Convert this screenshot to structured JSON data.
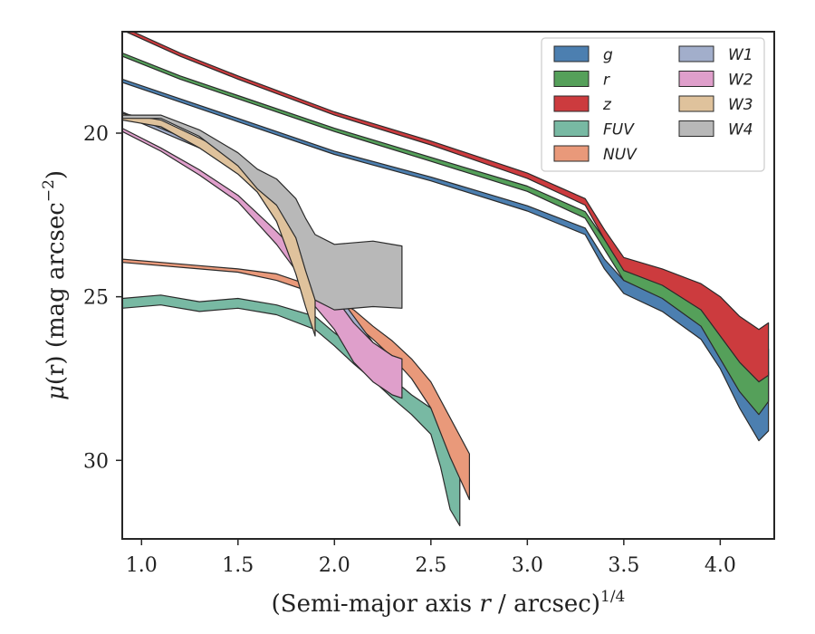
{
  "chart_data": {
    "type": "area",
    "title": "",
    "xlabel": {
      "prefix": "(Semi-major axis ",
      "var": "r",
      "suffix": " / arcsec)",
      "exponent": "1/4"
    },
    "ylabel": {
      "mu": "μ",
      "arg": "(r)",
      "rest": " (mag arcsec",
      "exponent": "−2",
      "close": ")"
    },
    "xlim": [
      0.9,
      4.28
    ],
    "ylim": [
      32.4,
      16.9
    ],
    "y_inverted": true,
    "grid": false,
    "legend_position": "top-right",
    "legend_columns": 2,
    "xticks": [
      {
        "value": 1.0,
        "label": "1.0"
      },
      {
        "value": 1.5,
        "label": "1.5"
      },
      {
        "value": 2.0,
        "label": "2.0"
      },
      {
        "value": 2.5,
        "label": "2.5"
      },
      {
        "value": 3.0,
        "label": "3.0"
      },
      {
        "value": 3.5,
        "label": "3.5"
      },
      {
        "value": 4.0,
        "label": "4.0"
      }
    ],
    "yticks": [
      {
        "value": 20,
        "label": "20"
      },
      {
        "value": 25,
        "label": "25"
      },
      {
        "value": 30,
        "label": "30"
      }
    ],
    "series": [
      {
        "name": "g",
        "color": "#4c7fb0",
        "x": [
          0.9,
          1.2,
          1.5,
          2.0,
          2.5,
          3.0,
          3.3,
          3.4,
          3.5,
          3.7,
          3.9,
          4.0,
          4.1,
          4.2,
          4.25
        ],
        "y": [
          18.4,
          19.0,
          19.6,
          20.6,
          21.4,
          22.3,
          23.0,
          24.0,
          24.7,
          25.2,
          25.9,
          26.6,
          27.6,
          28.5,
          28.2
        ],
        "half_width": [
          0.05,
          0.05,
          0.05,
          0.05,
          0.06,
          0.08,
          0.1,
          0.15,
          0.2,
          0.25,
          0.4,
          0.6,
          0.8,
          0.9,
          0.9
        ]
      },
      {
        "name": "r",
        "color": "#55a05a",
        "x": [
          0.9,
          1.2,
          1.5,
          2.0,
          2.5,
          3.0,
          3.3,
          3.4,
          3.5,
          3.7,
          3.9,
          4.0,
          4.1,
          4.2,
          4.25
        ],
        "y": [
          17.6,
          18.3,
          18.9,
          19.9,
          20.8,
          21.7,
          22.5,
          23.4,
          24.3,
          24.8,
          25.5,
          26.3,
          27.2,
          27.8,
          27.4
        ],
        "half_width": [
          0.05,
          0.05,
          0.05,
          0.05,
          0.06,
          0.08,
          0.1,
          0.15,
          0.2,
          0.25,
          0.4,
          0.6,
          0.7,
          0.8,
          0.8
        ]
      },
      {
        "name": "z",
        "color": "#cc3b3e",
        "x": [
          0.9,
          1.2,
          1.5,
          2.0,
          2.5,
          3.0,
          3.3,
          3.4,
          3.5,
          3.7,
          3.9,
          4.0,
          4.1,
          4.2,
          4.25
        ],
        "y": [
          16.8,
          17.6,
          18.3,
          19.4,
          20.3,
          21.3,
          22.1,
          23.1,
          24.0,
          24.4,
          25.0,
          25.6,
          26.3,
          26.8,
          26.6
        ],
        "half_width": [
          0.05,
          0.05,
          0.05,
          0.05,
          0.06,
          0.08,
          0.1,
          0.15,
          0.2,
          0.25,
          0.4,
          0.6,
          0.7,
          0.8,
          0.8
        ]
      },
      {
        "name": "FUV",
        "color": "#78b9a3",
        "x": [
          0.9,
          1.1,
          1.3,
          1.5,
          1.7,
          1.9,
          2.0,
          2.1,
          2.2,
          2.3,
          2.4,
          2.5,
          2.55,
          2.6,
          2.65
        ],
        "y": [
          25.2,
          25.1,
          25.3,
          25.2,
          25.4,
          25.8,
          26.3,
          26.8,
          27.3,
          27.8,
          28.3,
          28.8,
          29.6,
          30.7,
          31.2
        ],
        "half_width": [
          0.15,
          0.15,
          0.15,
          0.15,
          0.15,
          0.2,
          0.2,
          0.25,
          0.25,
          0.3,
          0.3,
          0.4,
          0.6,
          0.8,
          0.8
        ]
      },
      {
        "name": "NUV",
        "color": "#e9997a",
        "x": [
          0.9,
          1.1,
          1.3,
          1.5,
          1.7,
          1.9,
          2.0,
          2.1,
          2.2,
          2.3,
          2.4,
          2.5,
          2.6,
          2.7
        ],
        "y": [
          23.9,
          24.0,
          24.1,
          24.2,
          24.4,
          24.8,
          25.2,
          25.6,
          26.1,
          26.6,
          27.2,
          28.0,
          29.3,
          30.5
        ],
        "half_width": [
          0.05,
          0.05,
          0.05,
          0.05,
          0.1,
          0.1,
          0.15,
          0.2,
          0.2,
          0.25,
          0.3,
          0.4,
          0.6,
          0.7
        ]
      },
      {
        "name": "W1",
        "color": "#a2aecb",
        "x": [
          0.9,
          1.1,
          1.3,
          1.5,
          1.7,
          1.8,
          1.9,
          2.0,
          2.1,
          2.2,
          2.3,
          2.35
        ],
        "y": [
          19.4,
          19.9,
          20.4,
          21.1,
          22.0,
          22.7,
          24.0,
          25.3,
          26.1,
          26.9,
          27.3,
          27.4
        ],
        "half_width": [
          0.05,
          0.05,
          0.05,
          0.08,
          0.15,
          0.25,
          0.5,
          0.5,
          0.5,
          0.5,
          0.5,
          0.5
        ]
      },
      {
        "name": "W2",
        "color": "#df9fcb",
        "x": [
          0.9,
          1.1,
          1.3,
          1.5,
          1.7,
          1.8,
          1.9,
          2.0,
          2.1,
          2.2,
          2.3,
          2.35
        ],
        "y": [
          19.9,
          20.5,
          21.2,
          22.0,
          23.2,
          23.9,
          24.8,
          25.5,
          26.4,
          27.0,
          27.4,
          27.5
        ],
        "half_width": [
          0.05,
          0.05,
          0.08,
          0.1,
          0.2,
          0.3,
          0.5,
          0.5,
          0.6,
          0.6,
          0.6,
          0.6
        ]
      },
      {
        "name": "W3",
        "color": "#dfc29c",
        "x": [
          0.9,
          1.1,
          1.3,
          1.5,
          1.6,
          1.7,
          1.75,
          1.8,
          1.85,
          1.9
        ],
        "y": [
          19.5,
          19.7,
          20.3,
          21.0,
          21.5,
          22.3,
          23.0,
          23.7,
          24.5,
          25.2
        ],
        "half_width": [
          0.1,
          0.1,
          0.15,
          0.25,
          0.3,
          0.4,
          0.5,
          0.6,
          0.8,
          1.0
        ]
      },
      {
        "name": "W4",
        "color": "#b8b8b8",
        "x": [
          0.9,
          1.1,
          1.3,
          1.5,
          1.6,
          1.7,
          1.8,
          1.85,
          1.9,
          2.0,
          2.2,
          2.35
        ],
        "y": [
          19.5,
          19.5,
          20.0,
          20.8,
          21.4,
          21.8,
          22.6,
          23.4,
          24.1,
          24.4,
          24.3,
          24.4
        ],
        "half_width": [
          0.05,
          0.05,
          0.1,
          0.2,
          0.3,
          0.4,
          0.6,
          0.8,
          1.0,
          1.0,
          1.0,
          0.95
        ]
      }
    ]
  }
}
